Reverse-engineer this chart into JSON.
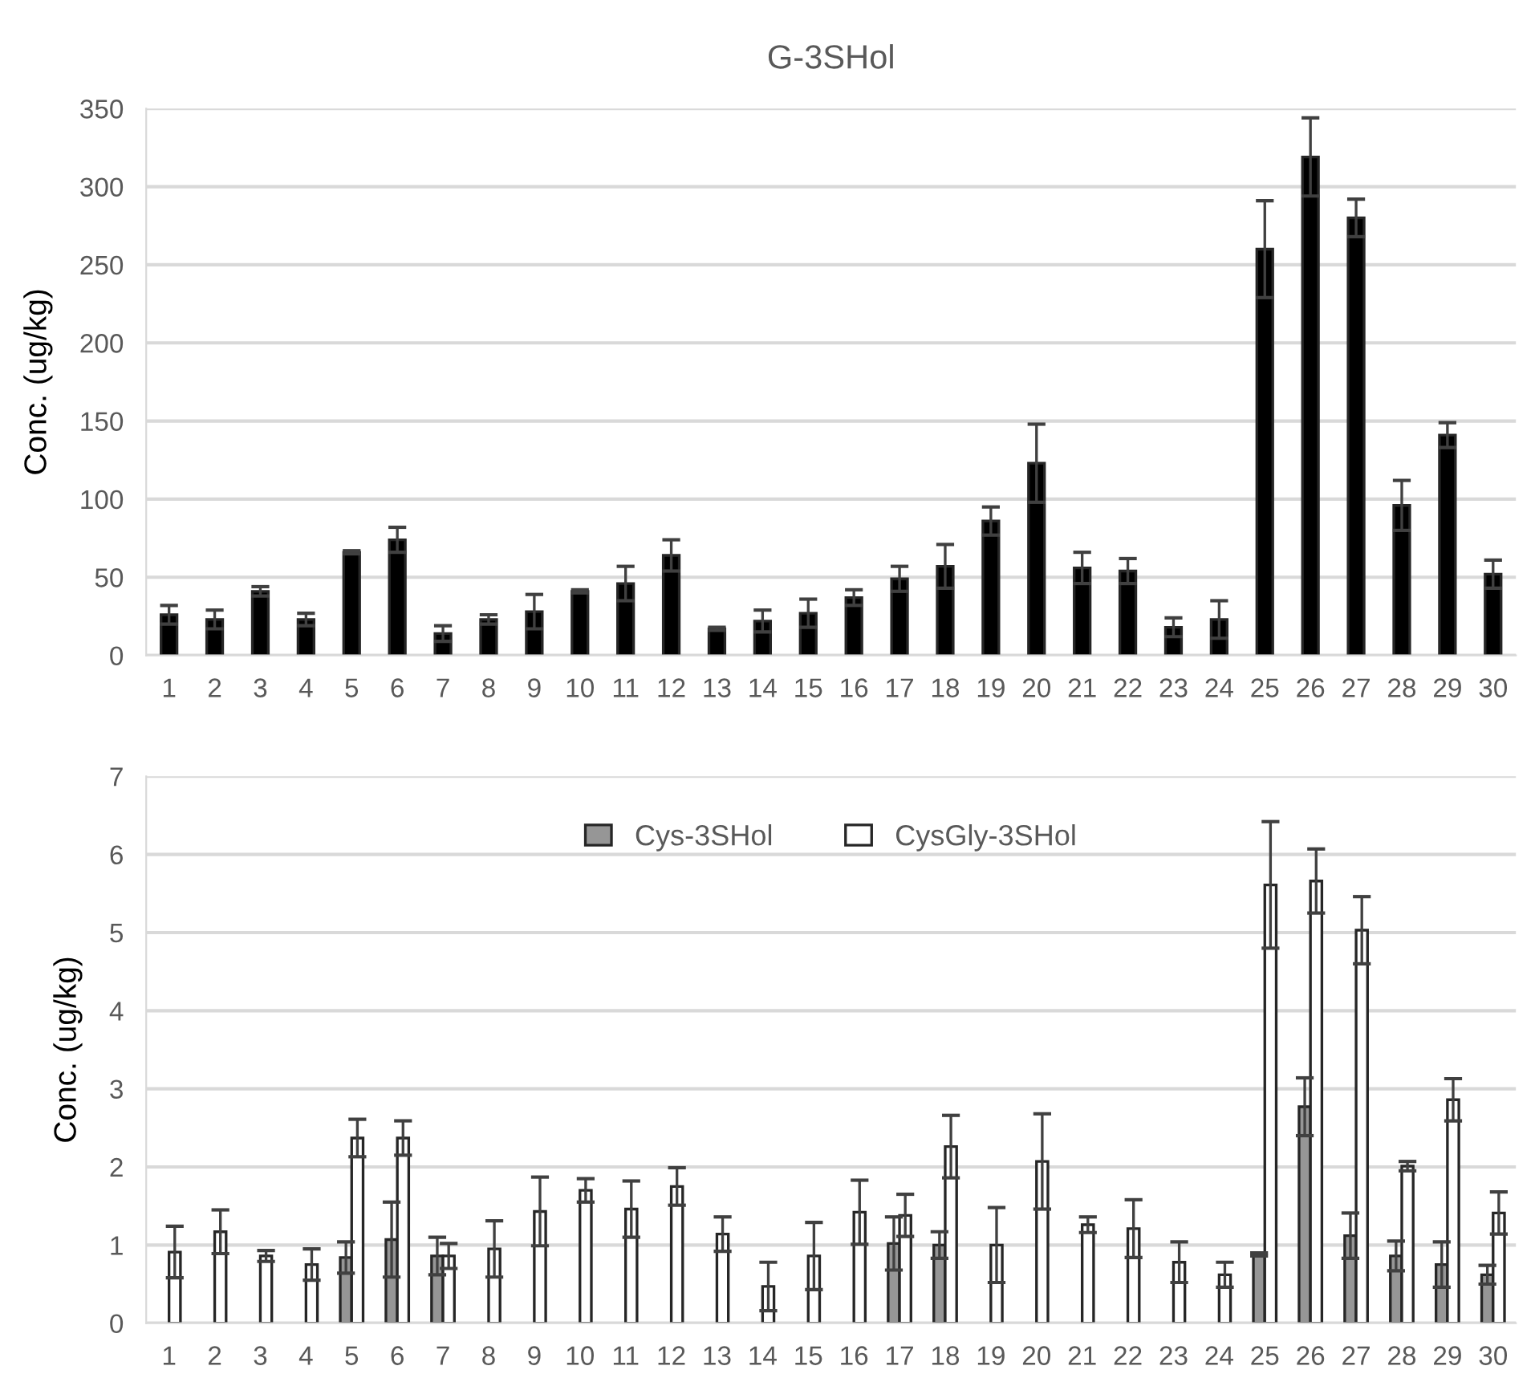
{
  "chart_data": [
    {
      "type": "bar",
      "title": "G-3SHol",
      "ylabel": "Conc. (ug/kg)",
      "categories": [
        "1",
        "2",
        "3",
        "4",
        "5",
        "6",
        "7",
        "8",
        "9",
        "10",
        "11",
        "12",
        "13",
        "14",
        "15",
        "16",
        "17",
        "18",
        "19",
        "20",
        "21",
        "22",
        "23",
        "24",
        "25",
        "26",
        "27",
        "28",
        "29",
        "30"
      ],
      "series": [
        {
          "color": "#000000",
          "values": [
            26,
            23,
            41,
            23,
            66,
            74,
            14,
            23,
            28,
            41,
            46,
            64,
            17,
            22,
            27,
            37,
            49,
            57,
            86,
            123,
            56,
            54,
            18,
            23,
            260,
            319,
            280,
            96,
            141,
            52
          ],
          "errors": [
            6,
            6,
            3,
            4,
            1,
            8,
            5,
            3,
            11,
            1,
            11,
            10,
            1,
            7,
            9,
            5,
            8,
            14,
            9,
            25,
            10,
            8,
            6,
            12,
            31,
            25,
            12,
            16,
            8,
            9
          ]
        }
      ],
      "ylim": [
        0,
        350
      ],
      "yticks": [
        0,
        50,
        100,
        150,
        200,
        250,
        300,
        350
      ],
      "grid": "y",
      "legend": false
    },
    {
      "type": "bar",
      "ylabel": "Conc. (ug/kg)",
      "categories": [
        "1",
        "2",
        "3",
        "4",
        "5",
        "6",
        "7",
        "8",
        "9",
        "10",
        "11",
        "12",
        "13",
        "14",
        "15",
        "16",
        "17",
        "18",
        "19",
        "20",
        "21",
        "22",
        "23",
        "24",
        "25",
        "26",
        "27",
        "28",
        "29",
        "30"
      ],
      "series": [
        {
          "name": "Cys-3SHol",
          "color": "#969696",
          "values": [
            null,
            null,
            null,
            null,
            0.84,
            1.07,
            0.86,
            null,
            null,
            null,
            null,
            null,
            null,
            null,
            null,
            null,
            1.02,
            1.0,
            null,
            null,
            null,
            null,
            null,
            null,
            0.88,
            2.77,
            1.12,
            0.86,
            0.75,
            0.62
          ],
          "errors": [
            null,
            null,
            null,
            null,
            0.2,
            0.48,
            0.24,
            null,
            null,
            null,
            null,
            null,
            null,
            null,
            null,
            null,
            0.34,
            0.17,
            null,
            null,
            null,
            null,
            null,
            null,
            0.02,
            0.37,
            0.29,
            0.19,
            0.29,
            0.12
          ]
        },
        {
          "name": "CysGly-3SHol",
          "color": "#ffffff",
          "values": [
            0.91,
            1.17,
            0.86,
            0.75,
            2.37,
            2.37,
            0.86,
            0.95,
            1.43,
            1.7,
            1.46,
            1.75,
            1.14,
            0.47,
            0.86,
            1.42,
            1.38,
            2.26,
            1.0,
            2.07,
            1.26,
            1.21,
            0.78,
            0.62,
            5.61,
            5.66,
            5.03,
            2.01,
            2.86,
            1.41
          ],
          "errors": [
            0.33,
            0.28,
            0.07,
            0.2,
            0.24,
            0.22,
            0.16,
            0.36,
            0.44,
            0.15,
            0.36,
            0.24,
            0.22,
            0.31,
            0.43,
            0.41,
            0.27,
            0.4,
            0.48,
            0.61,
            0.1,
            0.37,
            0.26,
            0.16,
            0.81,
            0.41,
            0.43,
            0.06,
            0.27,
            0.27
          ]
        }
      ],
      "ylim": [
        0,
        7
      ],
      "yticks": [
        0,
        1,
        2,
        3,
        4,
        5,
        6,
        7
      ],
      "grid": "y",
      "legend": "top"
    }
  ]
}
